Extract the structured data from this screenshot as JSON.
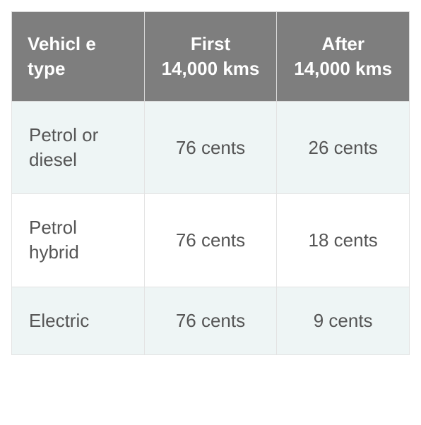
{
  "table": {
    "type": "table",
    "header_bg": "#7e7e7e",
    "header_color": "#ffffff",
    "header_fontsize": 26,
    "header_fontweight": 700,
    "cell_fontsize": 26,
    "cell_color": "#555555",
    "row_alt_bg": "#eef5f5",
    "row_plain_bg": "#ffffff",
    "border_color": "#e3e3e3",
    "columns": [
      {
        "label": "Vehicl\ne type",
        "align": "left",
        "width_pct": 33
      },
      {
        "label": "First 14,000 kms",
        "align": "center",
        "width_pct": 33
      },
      {
        "label": "After 14,000 kms",
        "align": "center",
        "width_pct": 34
      }
    ],
    "rows": [
      {
        "alt": true,
        "cells": [
          "Petrol or diesel",
          "76 cents",
          "26 cents"
        ]
      },
      {
        "alt": false,
        "cells": [
          "Petrol hybrid",
          "76 cents",
          "18 cents"
        ]
      },
      {
        "alt": true,
        "cells": [
          "Electric",
          "76 cents",
          "9 cents"
        ]
      }
    ]
  }
}
